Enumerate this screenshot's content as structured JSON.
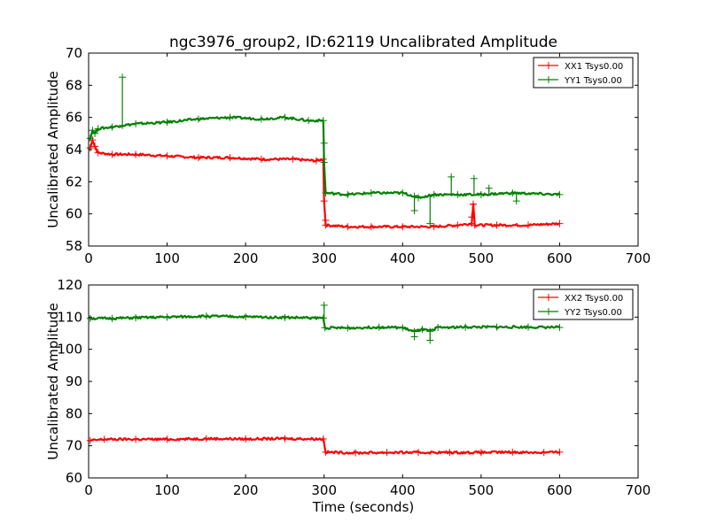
{
  "chart_data": [
    {
      "type": "line",
      "title": "ngc3976_group2, ID:62119 Uncalibrated Amplitude",
      "ylabel": "Uncalibrated Amplitude",
      "xlabel": "",
      "xlim": [
        0,
        700
      ],
      "ylim": [
        58,
        70
      ],
      "xticks": [
        0,
        100,
        200,
        300,
        400,
        500,
        600,
        700
      ],
      "yticks": [
        58,
        60,
        62,
        64,
        66,
        68,
        70
      ],
      "legend_position": "top-right",
      "series": [
        {
          "name": "XX1 Tsys0.00",
          "color": "#ff0000",
          "points": [
            [
              2,
              64.1
            ],
            [
              5,
              64.6
            ],
            [
              8,
              64.2
            ],
            [
              12,
              63.8
            ],
            [
              30,
              63.7
            ],
            [
              60,
              63.7
            ],
            [
              100,
              63.6
            ],
            [
              140,
              63.5
            ],
            [
              180,
              63.5
            ],
            [
              220,
              63.4
            ],
            [
              260,
              63.4
            ],
            [
              290,
              63.3
            ],
            [
              299,
              63.4
            ],
            [
              300,
              60.8
            ],
            [
              302,
              59.3
            ],
            [
              330,
              59.2
            ],
            [
              360,
              59.2
            ],
            [
              400,
              59.2
            ],
            [
              440,
              59.2
            ],
            [
              470,
              59.3
            ],
            [
              488,
              59.4
            ],
            [
              490,
              60.6
            ],
            [
              492,
              59.3
            ],
            [
              520,
              59.3
            ],
            [
              560,
              59.3
            ],
            [
              600,
              59.4
            ]
          ],
          "spikes": [
            [
              302,
              59.6
            ],
            [
              488,
              59.8
            ],
            [
              490,
              60.6
            ]
          ]
        },
        {
          "name": "YY1 Tsys0.00",
          "color": "#008000",
          "points": [
            [
              2,
              64.7
            ],
            [
              5,
              65.2
            ],
            [
              8,
              65.0
            ],
            [
              12,
              65.3
            ],
            [
              30,
              65.4
            ],
            [
              43,
              65.5
            ],
            [
              60,
              65.6
            ],
            [
              100,
              65.7
            ],
            [
              140,
              65.9
            ],
            [
              180,
              66.0
            ],
            [
              220,
              65.9
            ],
            [
              250,
              66.0
            ],
            [
              280,
              65.8
            ],
            [
              299,
              65.8
            ],
            [
              300,
              63.2
            ],
            [
              302,
              61.3
            ],
            [
              330,
              61.2
            ],
            [
              360,
              61.3
            ],
            [
              400,
              61.3
            ],
            [
              415,
              61.1
            ],
            [
              420,
              61.0
            ],
            [
              440,
              61.2
            ],
            [
              470,
              61.2
            ],
            [
              500,
              61.2
            ],
            [
              540,
              61.3
            ],
            [
              600,
              61.2
            ]
          ],
          "spikes": [
            [
              43,
              68.5
            ],
            [
              300,
              64.4
            ],
            [
              415,
              60.2
            ],
            [
              435,
              59.4
            ],
            [
              462,
              62.3
            ],
            [
              491,
              62.2
            ],
            [
              510,
              61.6
            ],
            [
              545,
              60.8
            ]
          ]
        }
      ]
    },
    {
      "type": "line",
      "title": "",
      "ylabel": "Uncalibrated Amplitude",
      "xlabel": "Time (seconds)",
      "xlim": [
        0,
        700
      ],
      "ylim": [
        60,
        120
      ],
      "xticks": [
        0,
        100,
        200,
        300,
        400,
        500,
        600,
        700
      ],
      "yticks": [
        60,
        70,
        80,
        90,
        100,
        110,
        120
      ],
      "legend_position": "top-right",
      "series": [
        {
          "name": "XX2 Tsys0.00",
          "color": "#ff0000",
          "points": [
            [
              2,
              71.6
            ],
            [
              20,
              72.0
            ],
            [
              60,
              72.0
            ],
            [
              100,
              72.0
            ],
            [
              150,
              72.2
            ],
            [
              200,
              72.1
            ],
            [
              250,
              72.2
            ],
            [
              299,
              72.1
            ],
            [
              302,
              68.0
            ],
            [
              340,
              67.8
            ],
            [
              380,
              67.9
            ],
            [
              420,
              67.9
            ],
            [
              460,
              67.9
            ],
            [
              500,
              67.9
            ],
            [
              540,
              68.0
            ],
            [
              580,
              67.9
            ],
            [
              600,
              68.0
            ]
          ],
          "spikes": []
        },
        {
          "name": "YY2 Tsys0.00",
          "color": "#008000",
          "points": [
            [
              2,
              109.6
            ],
            [
              30,
              109.6
            ],
            [
              60,
              109.8
            ],
            [
              100,
              110.0
            ],
            [
              150,
              110.3
            ],
            [
              200,
              110.1
            ],
            [
              250,
              109.9
            ],
            [
              299,
              109.7
            ],
            [
              301,
              106.7
            ],
            [
              330,
              106.6
            ],
            [
              370,
              106.9
            ],
            [
              400,
              106.7
            ],
            [
              415,
              105.5
            ],
            [
              425,
              106.2
            ],
            [
              435,
              105.6
            ],
            [
              445,
              106.8
            ],
            [
              480,
              106.9
            ],
            [
              520,
              106.9
            ],
            [
              560,
              106.9
            ],
            [
              600,
              106.8
            ]
          ],
          "spikes": [
            [
              300,
              113.7
            ],
            [
              415,
              103.9
            ],
            [
              435,
              102.8
            ]
          ]
        }
      ]
    }
  ]
}
